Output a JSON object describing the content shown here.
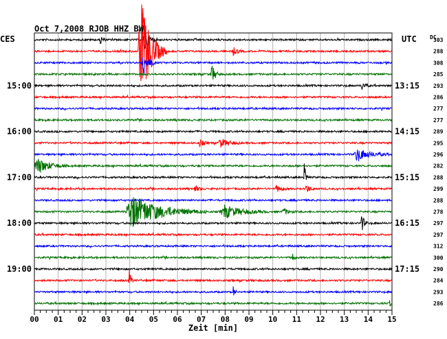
{
  "chart_data": {
    "type": "line",
    "subtype": "helicorder",
    "title": "Oct 7,2008   RJOB HHZ BW",
    "left_timezone": "CES",
    "right_timezone": "UTC",
    "dc_label": "DC",
    "xlabel": "Zeit [min]",
    "xlim": [
      0,
      15
    ],
    "x_ticks": [
      "00",
      "01",
      "02",
      "03",
      "04",
      "05",
      "06",
      "07",
      "08",
      "09",
      "10",
      "11",
      "12",
      "13",
      "14",
      "15"
    ],
    "grid": "vertical minor lines every 1 min",
    "colors": [
      "#000000",
      "#ff0000",
      "#0000ff",
      "#007000"
    ],
    "hour_labels_left": [
      {
        "row": 4,
        "label": "15:00"
      },
      {
        "row": 8,
        "label": "16:00"
      },
      {
        "row": 12,
        "label": "17:00"
      },
      {
        "row": 16,
        "label": "18:00"
      },
      {
        "row": 20,
        "label": "19:00"
      }
    ],
    "hour_labels_right": [
      {
        "row": 4,
        "label": "13:15"
      },
      {
        "row": 8,
        "label": "14:15"
      },
      {
        "row": 12,
        "label": "15:15"
      },
      {
        "row": 16,
        "label": "16:15"
      },
      {
        "row": 20,
        "label": "17:15"
      }
    ],
    "dc_offsets": [
      "303",
      "288",
      "308",
      "285",
      "293",
      "286",
      "277",
      "277",
      "289",
      "295",
      "296",
      "282",
      "288",
      "299",
      "288",
      "278",
      "297",
      "297",
      "312",
      "300",
      "290",
      "284",
      "293",
      "286"
    ],
    "events": [
      {
        "row": 0,
        "minute": 2.75,
        "duration": 0.25,
        "amplitude": 0.5
      },
      {
        "row": 0,
        "minute": 4.55,
        "duration": 0.6,
        "amplitude": 1.2
      },
      {
        "row": 1,
        "minute": 4.35,
        "duration": 1.2,
        "amplitude": 5.0
      },
      {
        "row": 1,
        "minute": 8.3,
        "duration": 0.5,
        "amplitude": 0.35
      },
      {
        "row": 2,
        "minute": 4.5,
        "duration": 0.6,
        "amplitude": 1.3
      },
      {
        "row": 3,
        "minute": 7.4,
        "duration": 0.4,
        "amplitude": 0.9
      },
      {
        "row": 4,
        "minute": 13.7,
        "duration": 0.4,
        "amplitude": 0.35
      },
      {
        "row": 9,
        "minute": 6.9,
        "duration": 0.5,
        "amplitude": 0.3
      },
      {
        "row": 9,
        "minute": 7.7,
        "duration": 1.0,
        "amplitude": 0.4
      },
      {
        "row": 10,
        "minute": 13.4,
        "duration": 1.6,
        "amplitude": 0.55
      },
      {
        "row": 11,
        "minute": 0.0,
        "duration": 1.4,
        "amplitude": 0.75
      },
      {
        "row": 12,
        "minute": 11.3,
        "duration": 0.2,
        "amplitude": 1.4
      },
      {
        "row": 13,
        "minute": 6.7,
        "duration": 0.4,
        "amplitude": 0.3
      },
      {
        "row": 13,
        "minute": 10.1,
        "duration": 0.6,
        "amplitude": 0.3
      },
      {
        "row": 13,
        "minute": 11.35,
        "duration": 0.5,
        "amplitude": 0.35
      },
      {
        "row": 15,
        "minute": 3.8,
        "duration": 3.4,
        "amplitude": 1.5
      },
      {
        "row": 15,
        "minute": 7.8,
        "duration": 2.0,
        "amplitude": 0.6
      },
      {
        "row": 15,
        "minute": 10.4,
        "duration": 0.6,
        "amplitude": 0.3
      },
      {
        "row": 16,
        "minute": 13.7,
        "duration": 0.3,
        "amplitude": 0.9
      },
      {
        "row": 19,
        "minute": 10.8,
        "duration": 0.2,
        "amplitude": 0.5
      },
      {
        "row": 21,
        "minute": 3.95,
        "duration": 0.2,
        "amplitude": 1.1
      },
      {
        "row": 22,
        "minute": 8.3,
        "duration": 0.2,
        "amplitude": 0.7
      },
      {
        "row": 23,
        "minute": 14.85,
        "duration": 0.15,
        "amplitude": 0.8
      }
    ]
  }
}
